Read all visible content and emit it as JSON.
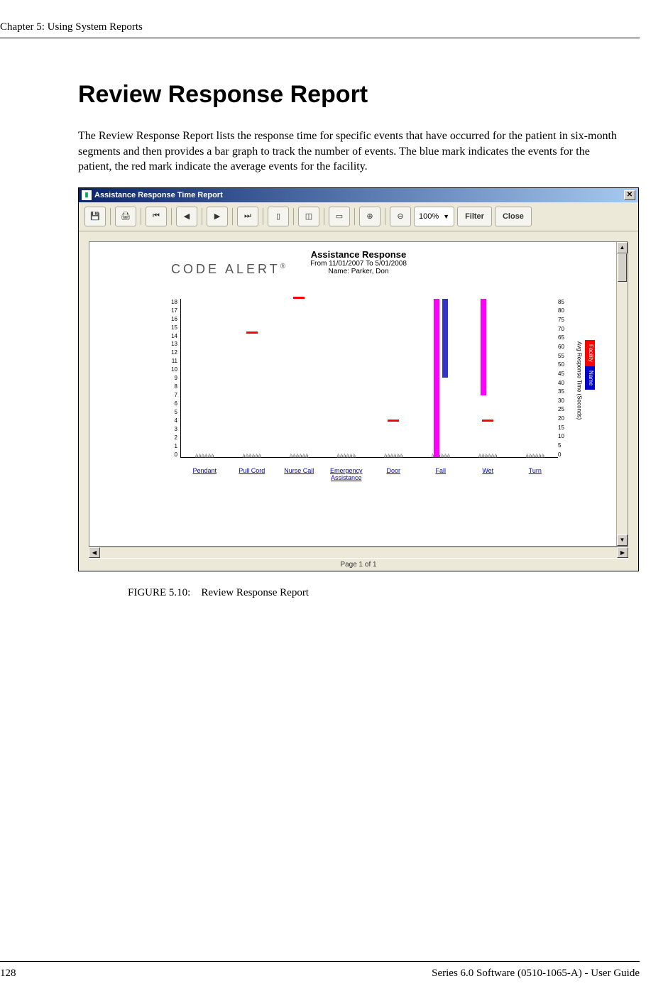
{
  "chapter_header": "Chapter 5: Using System Reports",
  "section_title": "Review Response Report",
  "body_text": "The Review Response Report lists the response time for specific events that have occurred for the patient in six-month segments and then provides a bar graph to track the number of events. The blue mark indicates the events for the patient, the red mark indicate the average events for the facility.",
  "figure_caption": "FIGURE 5.10: Review Response Report",
  "page_number": "128",
  "footer_right": "Series 6.0 Software (0510-1065-A) - User Guide",
  "window": {
    "title": "Assistance Response Time Report",
    "toolbar": {
      "save_icon": "💾",
      "print_icon": "🖨",
      "first": "⏮",
      "prev": "◀",
      "next": "▶",
      "last": "⏭",
      "doc1": "▯",
      "doc2": "◫",
      "doc3": "▭",
      "zoom_in": "⊕",
      "zoom_out": "⊖",
      "zoom_value": "100%",
      "filter_label": "Filter",
      "close_label": "Close"
    },
    "status": "Page 1 of 1"
  },
  "report": {
    "brand": "CODE ALERT",
    "title": "Assistance Response",
    "date_range": "From 11/01/2007 To 5/01/2008",
    "name_line": "Name: Parker, Don",
    "left_axis": {
      "max": 18,
      "ticks": [
        "18",
        "17",
        "16",
        "15",
        "14",
        "13",
        "12",
        "11",
        "10",
        "9",
        "8",
        "7",
        "6",
        "5",
        "4",
        "3",
        "2",
        "1",
        "0"
      ]
    },
    "right_axis": {
      "max": 85,
      "ticks": [
        "85",
        "80",
        "75",
        "70",
        "65",
        "60",
        "55",
        "50",
        "45",
        "40",
        "35",
        "30",
        "25",
        "20",
        "15",
        "10",
        "5",
        "0"
      ],
      "title": "Avg Response Time (Seconds)"
    },
    "legend": {
      "facility": "Facility",
      "name": "Name"
    },
    "plot": {
      "bar_facility_color": "#ff00ff",
      "bar_name_color": "#3333cc",
      "red_tick_color": "#ff0000"
    },
    "categories": [
      {
        "label": "Pendant",
        "facility_bar": 0,
        "name_bar": 0,
        "red_tick_at": null
      },
      {
        "label": "Pull Cord",
        "facility_bar": 0,
        "name_bar": 0,
        "red_tick_at": 14
      },
      {
        "label": "Nurse Call",
        "facility_bar": 0,
        "name_bar": 0,
        "red_tick_at": 18
      },
      {
        "label": "Emergency Assistance",
        "facility_bar": 0,
        "name_bar": 0,
        "red_tick_at": null
      },
      {
        "label": "Door",
        "facility_bar": 0,
        "name_bar": 0,
        "red_tick_at": 4
      },
      {
        "label": "Fall",
        "facility_bar": 18,
        "name_bar": 9,
        "red_tick_at": null
      },
      {
        "label": "Wet",
        "facility_bar": 11,
        "name_bar": 0,
        "red_tick_at": 4
      },
      {
        "label": "Turn",
        "facility_bar": 0,
        "name_bar": 0,
        "red_tick_at": null
      }
    ],
    "sub_ticks": "àààààà"
  }
}
